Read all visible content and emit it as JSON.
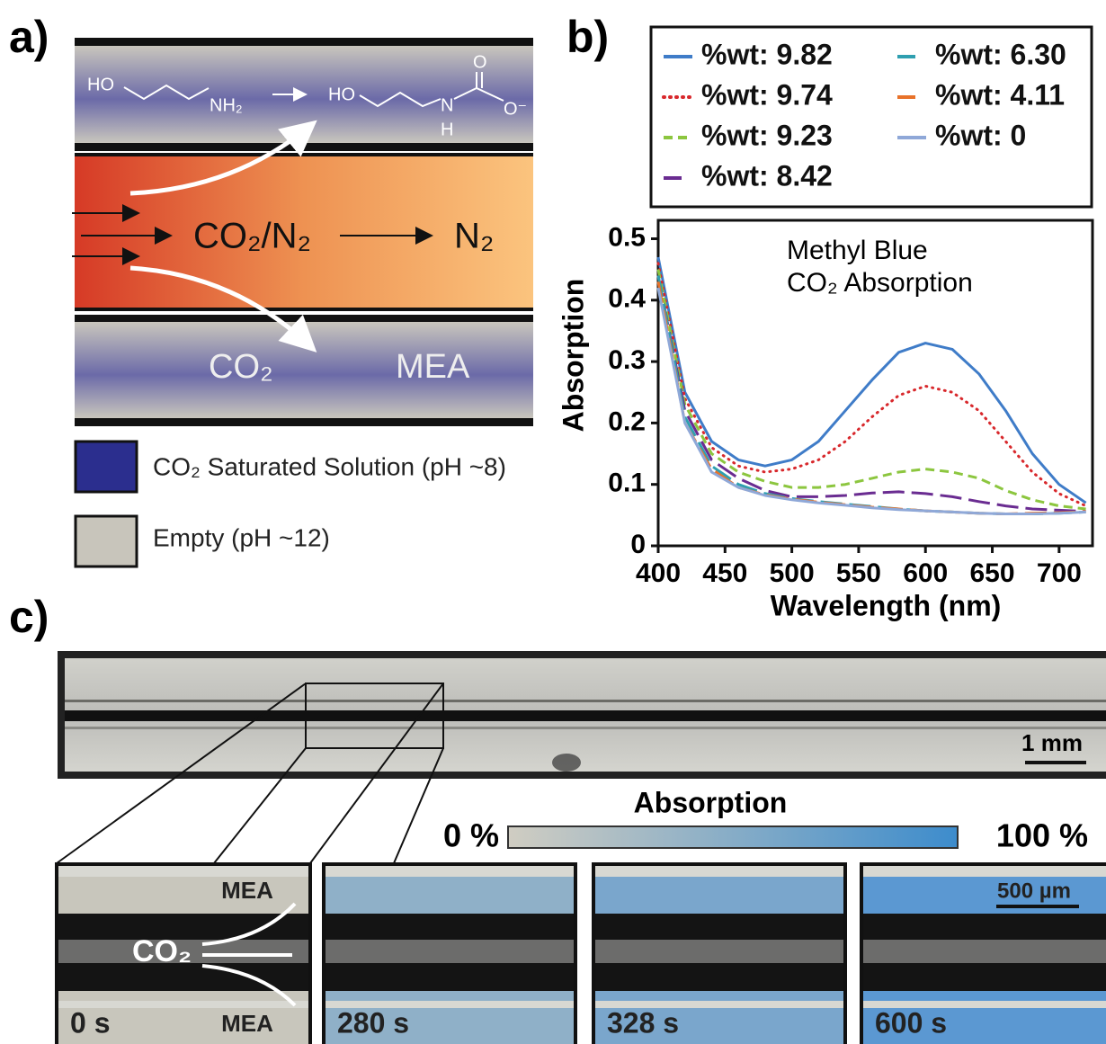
{
  "panels": {
    "a": "a)",
    "b": "b)",
    "c": "c)"
  },
  "diagram": {
    "reactant_ho": "HO",
    "reactant_nh2": "NH₂",
    "product_ho": "HO",
    "product_n": "N",
    "product_h": "H",
    "product_o": "O",
    "product_o_minus": "O⁻",
    "feed": "CO₂/N₂",
    "outlet": "N₂",
    "absorbed": "CO₂",
    "solvent": "MEA",
    "legend": [
      "CO₂ Saturated Solution (pH ~8)",
      "Empty (pH ~12)"
    ]
  },
  "chart_data": {
    "type": "line",
    "xlabel": "Wavelength (nm)",
    "ylabel": "Absorption",
    "annotation": [
      "Methyl Blue",
      "CO₂ Absorption"
    ],
    "x": [
      400,
      420,
      440,
      460,
      480,
      500,
      520,
      540,
      560,
      580,
      600,
      620,
      640,
      660,
      680,
      700,
      720
    ],
    "series": [
      {
        "name": "%wt: 9.82",
        "color": "#3f7cc8",
        "style": "solid",
        "values": [
          0.47,
          0.25,
          0.17,
          0.14,
          0.13,
          0.14,
          0.17,
          0.22,
          0.27,
          0.315,
          0.33,
          0.32,
          0.28,
          0.22,
          0.15,
          0.1,
          0.07
        ]
      },
      {
        "name": "%wt: 9.74",
        "color": "#d8282c",
        "style": "dotted",
        "values": [
          0.46,
          0.24,
          0.16,
          0.13,
          0.12,
          0.125,
          0.14,
          0.17,
          0.21,
          0.245,
          0.26,
          0.25,
          0.22,
          0.17,
          0.12,
          0.085,
          0.065
        ]
      },
      {
        "name": "%wt: 9.23",
        "color": "#8cc63f",
        "style": "dashed",
        "values": [
          0.45,
          0.23,
          0.15,
          0.12,
          0.105,
          0.095,
          0.095,
          0.1,
          0.11,
          0.12,
          0.125,
          0.12,
          0.11,
          0.09,
          0.075,
          0.065,
          0.06
        ]
      },
      {
        "name": "%wt: 8.42",
        "color": "#6a2c91",
        "style": "longdash",
        "values": [
          0.44,
          0.22,
          0.14,
          0.11,
          0.09,
          0.08,
          0.08,
          0.082,
          0.086,
          0.088,
          0.085,
          0.08,
          0.072,
          0.065,
          0.06,
          0.058,
          0.056
        ]
      },
      {
        "name": "%wt: 6.30",
        "color": "#2f9fb0",
        "style": "longdash",
        "values": [
          0.44,
          0.21,
          0.13,
          0.1,
          0.085,
          0.077,
          0.072,
          0.068,
          0.064,
          0.06,
          0.057,
          0.055,
          0.053,
          0.052,
          0.052,
          0.053,
          0.055
        ]
      },
      {
        "name": "%wt: 4.11",
        "color": "#e8722a",
        "style": "longdash",
        "values": [
          0.43,
          0.2,
          0.125,
          0.095,
          0.083,
          0.076,
          0.071,
          0.067,
          0.063,
          0.06,
          0.057,
          0.055,
          0.053,
          0.052,
          0.053,
          0.054,
          0.056
        ]
      },
      {
        "name": "%wt: 0",
        "color": "#8fa8d8",
        "style": "solid",
        "values": [
          0.42,
          0.2,
          0.12,
          0.095,
          0.082,
          0.075,
          0.07,
          0.066,
          0.062,
          0.059,
          0.057,
          0.055,
          0.053,
          0.052,
          0.052,
          0.053,
          0.055
        ]
      }
    ],
    "xlim": [
      400,
      725
    ],
    "ylim": [
      0,
      0.53
    ],
    "xticks": [
      400,
      450,
      500,
      550,
      600,
      650,
      700
    ],
    "yticks": [
      0,
      0.1,
      0.2,
      0.3,
      0.4,
      0.5
    ]
  },
  "micrographs": {
    "scale_overview": "1 mm",
    "colorbar_title": "Absorption",
    "colorbar_min": "0 %",
    "colorbar_max": "100 %",
    "scale_zoom": "500 µm",
    "label_top": "MEA",
    "label_bottom": "MEA",
    "label_gas": "CO₂",
    "times": [
      "0 s",
      "280 s",
      "328 s",
      "600 s"
    ]
  }
}
